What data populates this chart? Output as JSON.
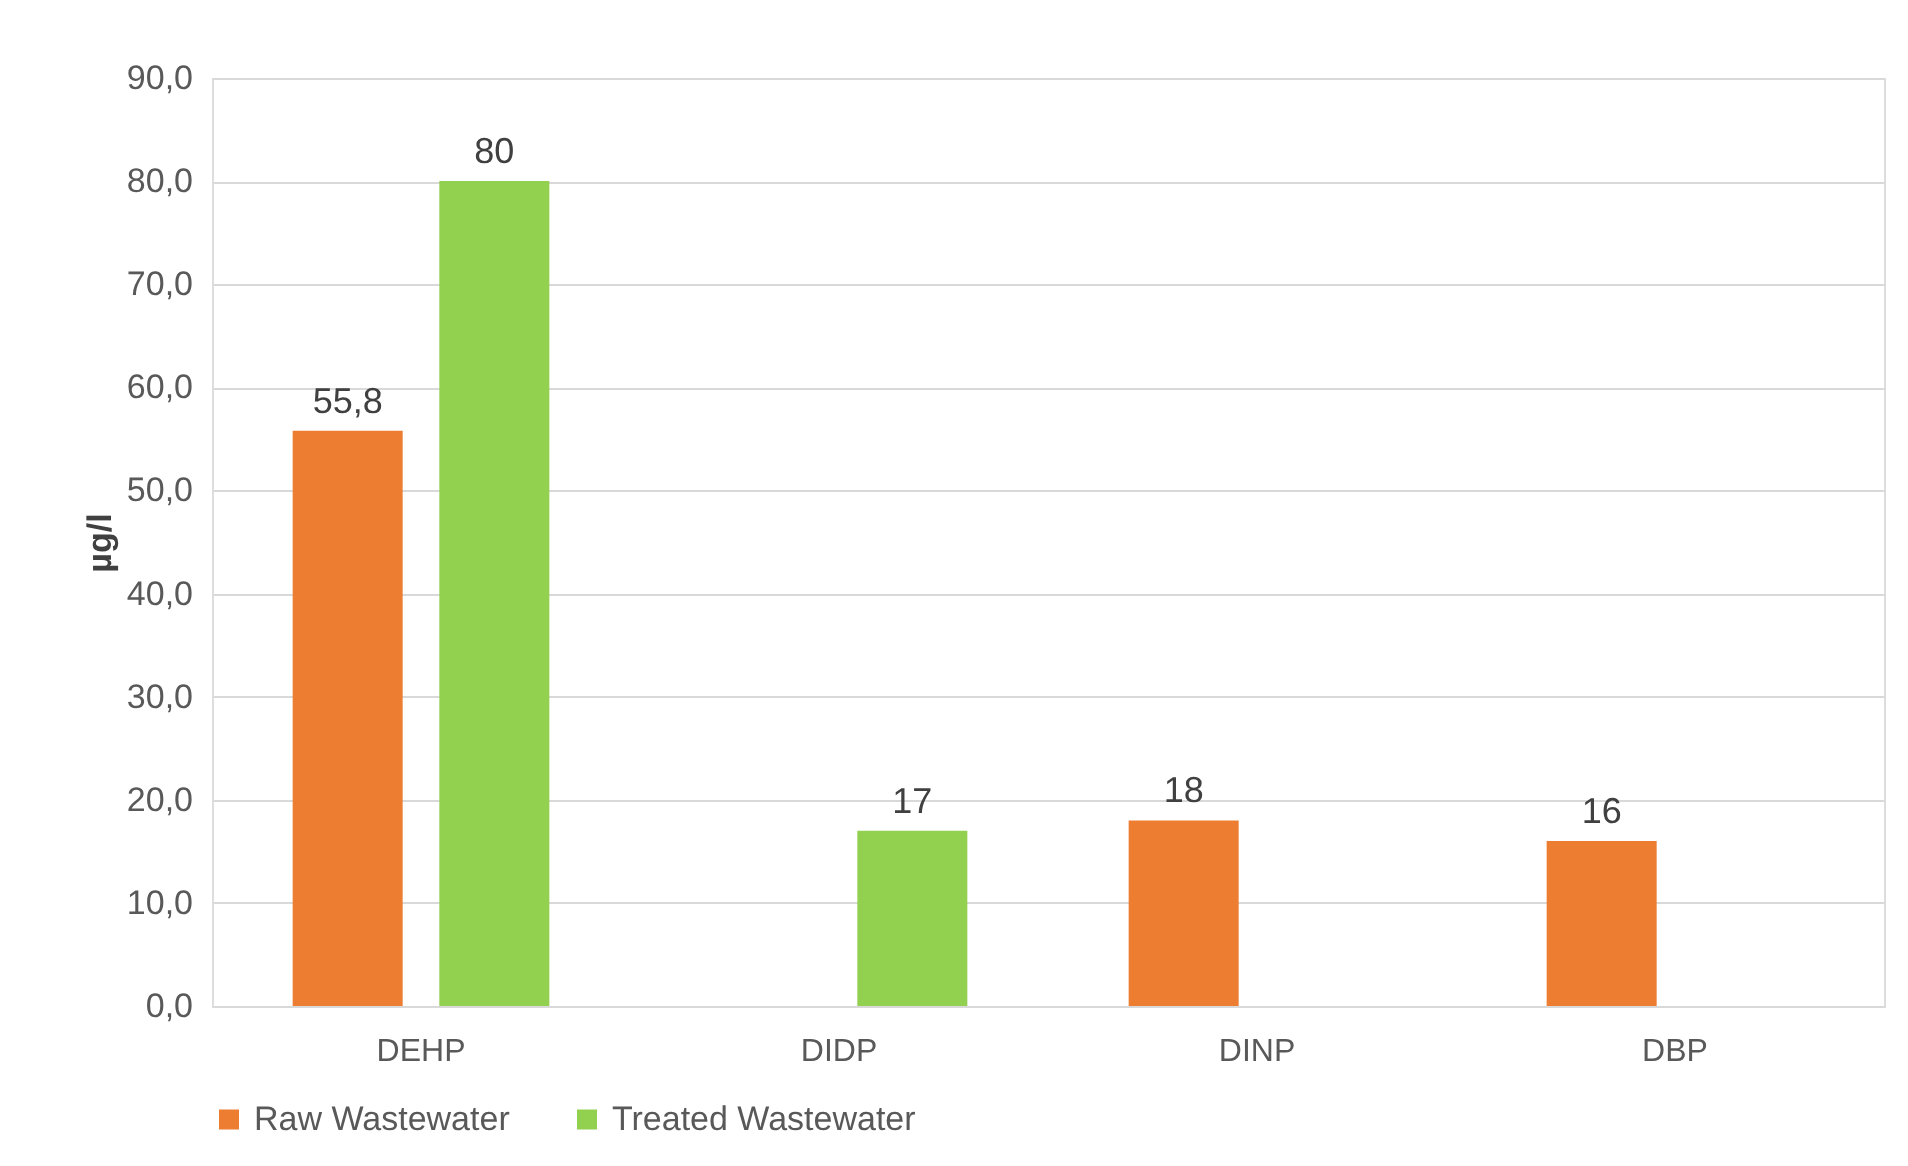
{
  "chart_data": {
    "type": "bar",
    "ylabel": "µg/l",
    "categories": [
      "DEHP",
      "DIDP",
      "DINP",
      "DBP"
    ],
    "series": [
      {
        "name": "Raw Wastewater",
        "color": "#ed7d31",
        "values": [
          55.8,
          null,
          18,
          16
        ],
        "value_labels": [
          "55,8",
          null,
          "18",
          "16"
        ]
      },
      {
        "name": "Treated Wastewater",
        "color": "#92d050",
        "values": [
          80,
          17,
          null,
          null
        ],
        "value_labels": [
          "80",
          "17",
          null,
          null
        ]
      }
    ],
    "ylim": [
      0,
      90
    ],
    "yticks": [
      {
        "value": 0,
        "label": "0,0"
      },
      {
        "value": 10,
        "label": "10,0"
      },
      {
        "value": 20,
        "label": "20,0"
      },
      {
        "value": 30,
        "label": "30,0"
      },
      {
        "value": 40,
        "label": "40,0"
      },
      {
        "value": 50,
        "label": "50,0"
      },
      {
        "value": 60,
        "label": "60,0"
      },
      {
        "value": 70,
        "label": "70,0"
      },
      {
        "value": 80,
        "label": "80,0"
      },
      {
        "value": 90,
        "label": "90,0"
      }
    ],
    "grid": "y",
    "legend": "bottom"
  }
}
